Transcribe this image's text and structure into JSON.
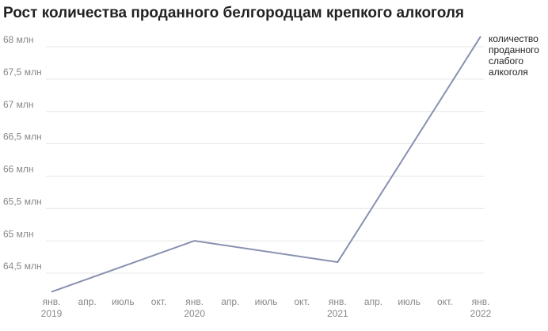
{
  "chart_data": {
    "type": "line",
    "title": "Рост количества проданного белгородцам крепкого алкоголя",
    "xlim": [
      0,
      36
    ],
    "xticks": [
      {
        "value": 0,
        "label": "янв."
      },
      {
        "value": 3,
        "label": "апр."
      },
      {
        "value": 6,
        "label": "июль"
      },
      {
        "value": 9,
        "label": "окт."
      },
      {
        "value": 12,
        "label": "янв."
      },
      {
        "value": 15,
        "label": "апр."
      },
      {
        "value": 18,
        "label": "июль"
      },
      {
        "value": 21,
        "label": "окт."
      },
      {
        "value": 24,
        "label": "янв."
      },
      {
        "value": 27,
        "label": "апр."
      },
      {
        "value": 30,
        "label": "июль"
      },
      {
        "value": 33,
        "label": "окт."
      },
      {
        "value": 36,
        "label": "янв."
      }
    ],
    "year_labels": [
      {
        "value": 0,
        "label": "2019"
      },
      {
        "value": 12,
        "label": "2020"
      },
      {
        "value": 24,
        "label": "2021"
      },
      {
        "value": 36,
        "label": "2022"
      }
    ],
    "ylim": [
      64.1,
      68.2
    ],
    "yticks": [
      {
        "value": 64.5,
        "label": "64,5 млн"
      },
      {
        "value": 65,
        "label": "65 млн"
      },
      {
        "value": 65.5,
        "label": "65,5 млн"
      },
      {
        "value": 66,
        "label": "66 млн"
      },
      {
        "value": 66.5,
        "label": "66,5 млн"
      },
      {
        "value": 67,
        "label": "67 млн"
      },
      {
        "value": 67.5,
        "label": "67,5 млн"
      },
      {
        "value": 68,
        "label": "68 млн"
      }
    ],
    "grid": true,
    "series": [
      {
        "name": "количество проданного слабого алкоголя",
        "color": "#8891b0",
        "x": [
          0,
          12,
          24,
          36
        ],
        "values": [
          64.21,
          65.0,
          64.67,
          68.16
        ]
      }
    ]
  }
}
